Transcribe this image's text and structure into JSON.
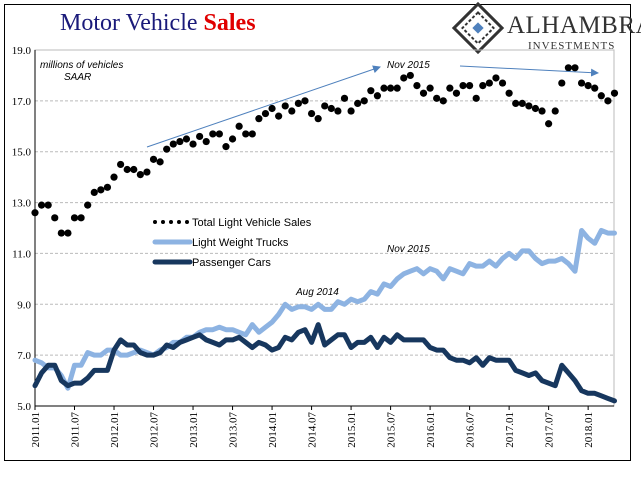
{
  "chart_data": {
    "type": "line",
    "title_part1": "Motor Vehicle",
    "title_part2": "Sales",
    "unit_label_line1": "millions of vehicles",
    "unit_label_line2": "SAAR",
    "ylim": [
      5.0,
      19.0
    ],
    "yticks": [
      "19.0",
      "17.0",
      "15.0",
      "13.0",
      "11.0",
      "9.0",
      "7.0",
      "5.0"
    ],
    "ytick_values": [
      19,
      17,
      15,
      13,
      11,
      9,
      7,
      5
    ],
    "xticks": [
      "2011.01",
      "2011.07",
      "2012.01",
      "2012.07",
      "2013.01",
      "2013.07",
      "2014.01",
      "2014.07",
      "2015.01",
      "2015.07",
      "2016.01",
      "2016.07",
      "2017.01",
      "2017.07",
      "2018.01"
    ],
    "x_start": "2011.01",
    "x_end": "2018.05",
    "grid": true,
    "legend_placement": "center-left",
    "series": [
      {
        "name": "Total Light Vehicle Sales",
        "style": "dots",
        "color": "#000000",
        "values": [
          12.6,
          12.9,
          12.9,
          12.4,
          11.8,
          11.8,
          12.4,
          12.4,
          12.9,
          13.4,
          13.5,
          13.6,
          14.0,
          14.5,
          14.3,
          14.3,
          14.1,
          14.2,
          14.7,
          14.6,
          15.1,
          15.3,
          15.4,
          15.5,
          15.3,
          15.6,
          15.4,
          15.7,
          15.7,
          15.2,
          15.5,
          16.0,
          15.7,
          15.7,
          16.3,
          16.5,
          16.7,
          16.4,
          16.8,
          16.6,
          16.9,
          17.0,
          16.5,
          16.3,
          16.8,
          16.7,
          16.6,
          17.1,
          16.6,
          16.9,
          17.0,
          17.4,
          17.2,
          17.5,
          17.5,
          17.5,
          17.9,
          18.0,
          17.6,
          17.3,
          17.5,
          17.1,
          17.0,
          17.5,
          17.3,
          17.6,
          17.6,
          17.1,
          17.6,
          17.7,
          17.9,
          17.7,
          17.3,
          16.9,
          16.9,
          16.8,
          16.7,
          16.6,
          16.1,
          16.6,
          17.7,
          18.3,
          18.3,
          17.7,
          17.6,
          17.5,
          17.2,
          17.0,
          17.3
        ]
      },
      {
        "name": "Light Weight Trucks",
        "style": "line",
        "color": "#8db3e2",
        "values": [
          6.8,
          6.7,
          6.5,
          6.5,
          6.2,
          5.7,
          6.6,
          6.6,
          7.1,
          7.0,
          7.0,
          7.2,
          7.2,
          7.0,
          7.0,
          7.1,
          7.2,
          7.1,
          7.0,
          7.2,
          7.3,
          7.5,
          7.5,
          7.7,
          7.7,
          7.9,
          8.0,
          8.0,
          8.1,
          8.0,
          8.0,
          7.9,
          7.8,
          8.2,
          7.9,
          8.1,
          8.3,
          8.6,
          9.0,
          8.8,
          8.9,
          8.9,
          8.8,
          9.0,
          8.8,
          8.8,
          9.1,
          9.0,
          9.2,
          9.1,
          9.2,
          9.5,
          9.4,
          9.8,
          9.7,
          10.0,
          10.2,
          10.3,
          10.4,
          10.2,
          10.4,
          10.3,
          10.0,
          10.4,
          10.3,
          10.2,
          10.6,
          10.5,
          10.5,
          10.7,
          10.5,
          10.8,
          11.0,
          10.8,
          11.1,
          11.1,
          10.8,
          10.6,
          10.7,
          10.7,
          10.8,
          10.6,
          10.3,
          11.9,
          11.6,
          11.4,
          11.9,
          11.8,
          11.8
        ]
      },
      {
        "name": "Passenger Cars",
        "style": "line",
        "color": "#17375e",
        "values": [
          5.8,
          6.3,
          6.6,
          6.6,
          6.0,
          5.8,
          5.9,
          5.9,
          6.1,
          6.4,
          6.4,
          6.4,
          7.2,
          7.6,
          7.4,
          7.4,
          7.1,
          7.0,
          7.0,
          7.1,
          7.4,
          7.3,
          7.5,
          7.6,
          7.7,
          7.8,
          7.6,
          7.5,
          7.4,
          7.6,
          7.6,
          7.7,
          7.5,
          7.3,
          7.5,
          7.4,
          7.2,
          7.3,
          7.7,
          7.6,
          7.9,
          8.0,
          7.5,
          8.2,
          7.4,
          7.6,
          7.8,
          7.8,
          7.3,
          7.5,
          7.5,
          7.7,
          7.3,
          7.7,
          7.5,
          7.8,
          7.6,
          7.6,
          7.6,
          7.6,
          7.3,
          7.2,
          7.2,
          6.9,
          6.8,
          6.8,
          6.7,
          6.9,
          6.6,
          6.9,
          6.8,
          6.8,
          6.8,
          6.4,
          6.3,
          6.2,
          6.3,
          6.0,
          5.9,
          5.8,
          6.6,
          6.3,
          6.0,
          5.6,
          5.5,
          5.5,
          5.4,
          5.3,
          5.2
        ]
      }
    ],
    "annotations": [
      "Nov 2015",
      "Nov 2015",
      "Aug 2014"
    ]
  },
  "logo": {
    "name": "ALHAMBRA",
    "sub": "INVESTMENTS"
  }
}
